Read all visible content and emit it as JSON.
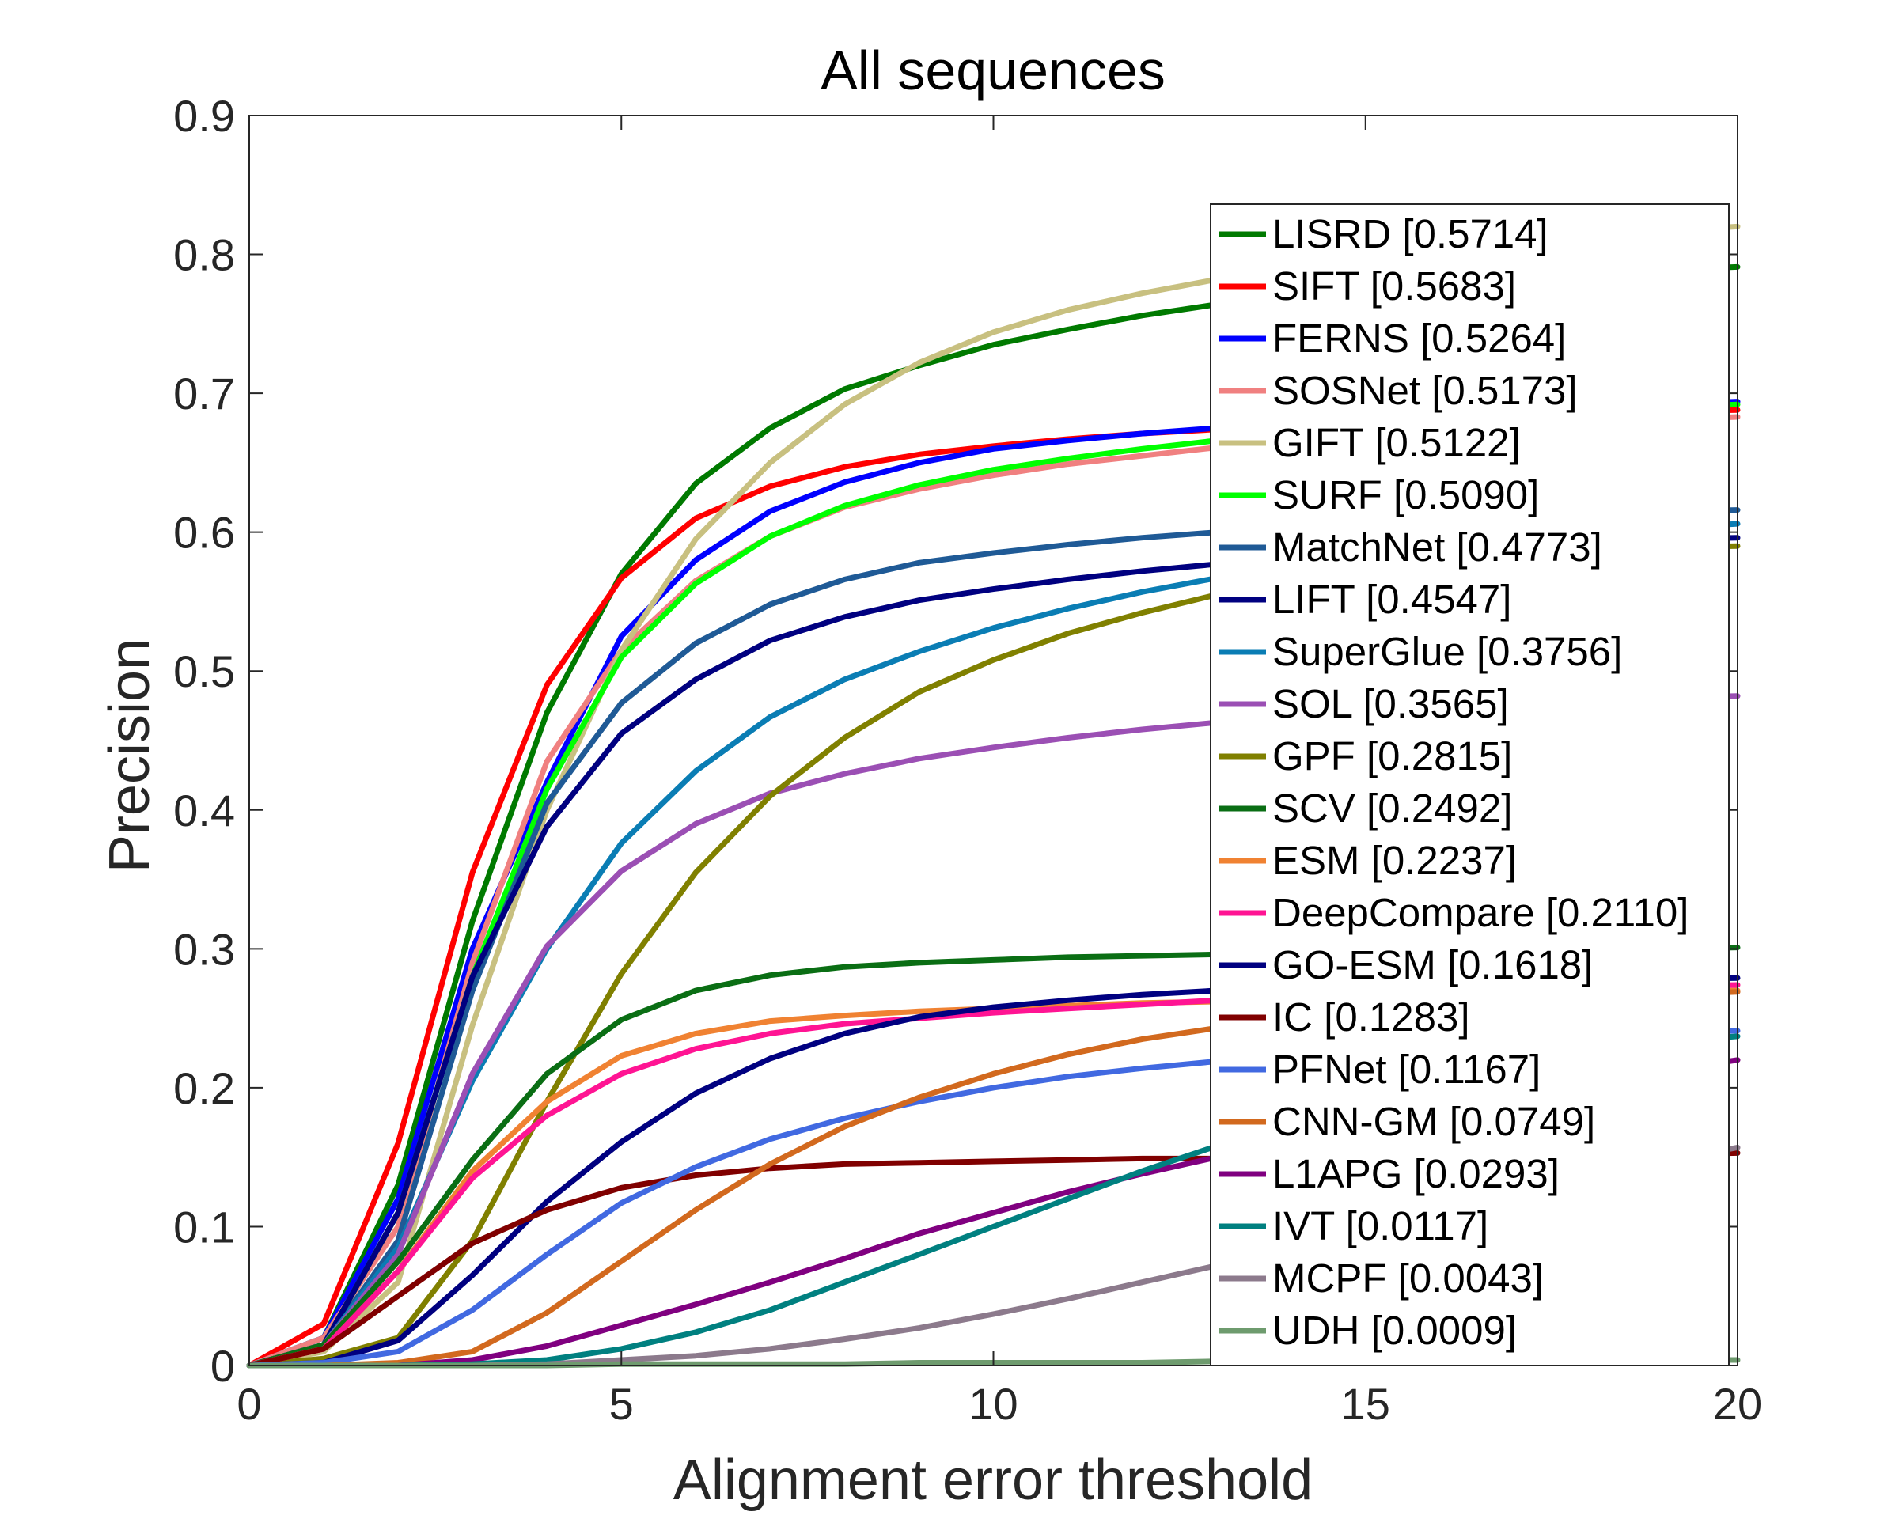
{
  "chart_data": {
    "type": "line",
    "title": "All sequences",
    "xlabel": "Alignment error threshold",
    "ylabel": "Precision",
    "xlim": [
      0,
      20
    ],
    "ylim": [
      0,
      0.9
    ],
    "xticks": [
      "0",
      "5",
      "10",
      "15",
      "20"
    ],
    "yticks": [
      "0",
      "0.1",
      "0.2",
      "0.3",
      "0.4",
      "0.5",
      "0.6",
      "0.7",
      "0.8",
      "0.9"
    ],
    "grid": false,
    "legend_position": "top-right",
    "x": [
      0,
      1,
      2,
      3,
      4,
      5,
      6,
      7,
      8,
      9,
      10,
      11,
      12,
      13,
      14,
      15,
      16,
      17,
      18,
      19,
      20
    ],
    "series": [
      {
        "name": "LISRD [0.5714]",
        "color": "#007a00",
        "values": [
          0,
          0.02,
          0.13,
          0.32,
          0.47,
          0.57,
          0.635,
          0.675,
          0.703,
          0.72,
          0.735,
          0.746,
          0.756,
          0.764,
          0.77,
          0.775,
          0.779,
          0.783,
          0.786,
          0.789,
          0.791
        ]
      },
      {
        "name": "SIFT [0.5683]",
        "color": "#ff0000",
        "values": [
          0,
          0.03,
          0.16,
          0.355,
          0.49,
          0.567,
          0.61,
          0.633,
          0.647,
          0.656,
          0.662,
          0.667,
          0.671,
          0.674,
          0.677,
          0.679,
          0.681,
          0.683,
          0.685,
          0.687,
          0.688
        ]
      },
      {
        "name": "FERNS [0.5264]",
        "color": "#0000ff",
        "values": [
          0,
          0.02,
          0.12,
          0.3,
          0.42,
          0.525,
          0.58,
          0.615,
          0.636,
          0.65,
          0.66,
          0.666,
          0.671,
          0.675,
          0.679,
          0.682,
          0.685,
          0.688,
          0.69,
          0.692,
          0.694
        ]
      },
      {
        "name": "SOSNet [0.5173]",
        "color": "#f08080",
        "values": [
          0,
          0.02,
          0.1,
          0.29,
          0.435,
          0.515,
          0.565,
          0.597,
          0.618,
          0.631,
          0.641,
          0.649,
          0.655,
          0.661,
          0.666,
          0.67,
          0.673,
          0.676,
          0.679,
          0.681,
          0.683
        ]
      },
      {
        "name": "GIFT [0.5122]",
        "color": "#c8c080",
        "values": [
          0,
          0.01,
          0.06,
          0.245,
          0.4,
          0.515,
          0.595,
          0.65,
          0.692,
          0.722,
          0.744,
          0.76,
          0.772,
          0.782,
          0.79,
          0.797,
          0.803,
          0.808,
          0.813,
          0.817,
          0.82
        ]
      },
      {
        "name": "SURF [0.5090]",
        "color": "#00ff00",
        "values": [
          0,
          0.015,
          0.11,
          0.28,
          0.415,
          0.51,
          0.563,
          0.597,
          0.619,
          0.634,
          0.645,
          0.653,
          0.66,
          0.666,
          0.671,
          0.676,
          0.68,
          0.684,
          0.687,
          0.69,
          0.692
        ]
      },
      {
        "name": "MatchNet [0.4773]",
        "color": "#1f5a96",
        "values": [
          0,
          0.015,
          0.09,
          0.27,
          0.405,
          0.477,
          0.52,
          0.548,
          0.566,
          0.578,
          0.585,
          0.591,
          0.596,
          0.6,
          0.604,
          0.607,
          0.609,
          0.611,
          0.613,
          0.615,
          0.616
        ]
      },
      {
        "name": "LIFT [0.4547]",
        "color": "#000080",
        "values": [
          0,
          0.015,
          0.11,
          0.28,
          0.388,
          0.455,
          0.494,
          0.522,
          0.539,
          0.551,
          0.559,
          0.566,
          0.572,
          0.577,
          0.581,
          0.585,
          0.588,
          0.591,
          0.593,
          0.595,
          0.596
        ]
      },
      {
        "name": "SuperGlue [0.3756]",
        "color": "#0a7db4",
        "values": [
          0,
          0.015,
          0.085,
          0.205,
          0.3,
          0.376,
          0.428,
          0.467,
          0.494,
          0.514,
          0.531,
          0.545,
          0.557,
          0.567,
          0.576,
          0.584,
          0.59,
          0.595,
          0.6,
          0.603,
          0.606
        ]
      },
      {
        "name": "SOL [0.3565]",
        "color": "#9b4fb4",
        "values": [
          0,
          0.015,
          0.08,
          0.21,
          0.302,
          0.356,
          0.39,
          0.412,
          0.426,
          0.437,
          0.445,
          0.452,
          0.458,
          0.463,
          0.467,
          0.471,
          0.474,
          0.477,
          0.479,
          0.481,
          0.482
        ]
      },
      {
        "name": "GPF [0.2815]",
        "color": "#808000",
        "values": [
          0,
          0.005,
          0.02,
          0.09,
          0.19,
          0.282,
          0.355,
          0.41,
          0.452,
          0.485,
          0.508,
          0.527,
          0.542,
          0.555,
          0.565,
          0.573,
          0.579,
          0.584,
          0.587,
          0.589,
          0.59
        ]
      },
      {
        "name": "SCV [0.2492]",
        "color": "#0a6e14",
        "values": [
          0,
          0.015,
          0.075,
          0.148,
          0.21,
          0.249,
          0.27,
          0.281,
          0.287,
          0.29,
          0.292,
          0.294,
          0.295,
          0.296,
          0.297,
          0.298,
          0.299,
          0.299,
          0.3,
          0.3,
          0.301
        ]
      },
      {
        "name": "ESM [0.2237]",
        "color": "#f08232",
        "values": [
          0,
          0.012,
          0.068,
          0.14,
          0.19,
          0.223,
          0.239,
          0.248,
          0.252,
          0.255,
          0.257,
          0.259,
          0.261,
          0.262,
          0.264,
          0.265,
          0.266,
          0.267,
          0.268,
          0.269,
          0.27
        ]
      },
      {
        "name": "DeepCompare [0.2110]",
        "color": "#ff1493",
        "values": [
          0,
          0.012,
          0.068,
          0.135,
          0.18,
          0.21,
          0.228,
          0.239,
          0.246,
          0.25,
          0.254,
          0.257,
          0.26,
          0.263,
          0.265,
          0.267,
          0.269,
          0.271,
          0.272,
          0.273,
          0.274
        ]
      },
      {
        "name": "GO-ESM [0.1618]",
        "color": "#000080",
        "values": [
          0,
          0.002,
          0.018,
          0.065,
          0.118,
          0.161,
          0.196,
          0.221,
          0.239,
          0.251,
          0.258,
          0.263,
          0.267,
          0.27,
          0.272,
          0.274,
          0.275,
          0.276,
          0.277,
          0.278,
          0.279
        ]
      },
      {
        "name": "IC [0.1283]",
        "color": "#800000",
        "values": [
          0,
          0.012,
          0.05,
          0.088,
          0.112,
          0.128,
          0.137,
          0.142,
          0.145,
          0.146,
          0.147,
          0.148,
          0.149,
          0.149,
          0.15,
          0.15,
          0.151,
          0.151,
          0.152,
          0.152,
          0.153
        ]
      },
      {
        "name": "PFNet [0.1167]",
        "color": "#4169e1",
        "values": [
          0,
          0.002,
          0.01,
          0.04,
          0.08,
          0.117,
          0.143,
          0.163,
          0.178,
          0.19,
          0.2,
          0.208,
          0.214,
          0.219,
          0.224,
          0.228,
          0.231,
          0.234,
          0.237,
          0.239,
          0.241
        ]
      },
      {
        "name": "CNN-GM [0.0749]",
        "color": "#d2691e",
        "values": [
          0,
          0,
          0.002,
          0.01,
          0.038,
          0.075,
          0.112,
          0.145,
          0.172,
          0.193,
          0.21,
          0.224,
          0.235,
          0.243,
          0.25,
          0.255,
          0.259,
          0.262,
          0.265,
          0.267,
          0.269
        ]
      },
      {
        "name": "L1APG [0.0293]",
        "color": "#800080",
        "values": [
          0,
          0,
          0,
          0.004,
          0.014,
          0.029,
          0.044,
          0.06,
          0.077,
          0.095,
          0.11,
          0.125,
          0.138,
          0.15,
          0.162,
          0.173,
          0.183,
          0.193,
          0.203,
          0.212,
          0.22
        ]
      },
      {
        "name": "IVT [0.0117]",
        "color": "#008080",
        "values": [
          0,
          0,
          0,
          0.001,
          0.004,
          0.012,
          0.024,
          0.04,
          0.06,
          0.08,
          0.1,
          0.12,
          0.14,
          0.158,
          0.175,
          0.191,
          0.205,
          0.217,
          0.226,
          0.233,
          0.237
        ]
      },
      {
        "name": "MCPF [0.0043]",
        "color": "#8c7a8c",
        "values": [
          0,
          0,
          0,
          0,
          0.001,
          0.004,
          0.007,
          0.012,
          0.019,
          0.027,
          0.037,
          0.048,
          0.06,
          0.072,
          0.085,
          0.098,
          0.111,
          0.124,
          0.136,
          0.147,
          0.157
        ]
      },
      {
        "name": "UDH [0.0009]",
        "color": "#6e9b6e",
        "values": [
          0,
          0,
          0,
          0,
          0,
          0.001,
          0.001,
          0.001,
          0.001,
          0.002,
          0.002,
          0.002,
          0.002,
          0.003,
          0.003,
          0.003,
          0.003,
          0.004,
          0.004,
          0.004,
          0.004
        ]
      }
    ]
  }
}
